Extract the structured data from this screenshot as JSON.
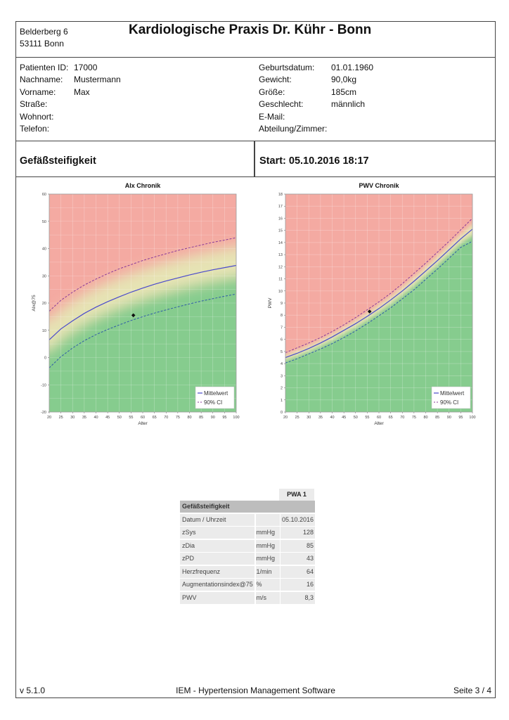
{
  "header": {
    "address_line1": "Belderberg 6",
    "address_line2": "53111 Bonn",
    "practice_name": "Kardiologische Praxis Dr. Kühr - Bonn"
  },
  "patient": {
    "left": [
      {
        "label": "Patienten ID:",
        "value": "17000"
      },
      {
        "label": "Nachname:",
        "value": "Mustermann"
      },
      {
        "label": "Vorname:",
        "value": "Max"
      },
      {
        "label": "Straße:",
        "value": ""
      },
      {
        "label": "Wohnort:",
        "value": ""
      },
      {
        "label": "Telefon:",
        "value": ""
      }
    ],
    "right": [
      {
        "label": "Geburtsdatum:",
        "value": "01.01.1960"
      },
      {
        "label": "Gewicht:",
        "value": "90,0kg"
      },
      {
        "label": "Größe:",
        "value": "185cm"
      },
      {
        "label": "Geschlecht:",
        "value": "männlich"
      },
      {
        "label": "E-Mail:",
        "value": ""
      },
      {
        "label": "Abteilung/Zimmer:",
        "value": ""
      }
    ]
  },
  "section": {
    "title": "Gefäßsteifigkeit",
    "start": "Start: 05.10.2016 18:17"
  },
  "colors": {
    "red_zone": "#f4aaa2",
    "yellow_zone": "#e6e3b4",
    "green_zone": "#86cc8e",
    "mean_line": "#4a4acc",
    "ci_upper": "#8a3a9a",
    "ci_lower": "#2f5aa8",
    "marker": "#111111"
  },
  "chart_data": [
    {
      "type": "line",
      "title": "AIx Chronik",
      "xlabel": "Alter",
      "ylabel": "AIx@75",
      "xlim": [
        20,
        100
      ],
      "ylim": [
        -20,
        60
      ],
      "xticks": [
        20,
        25,
        30,
        35,
        40,
        45,
        50,
        55,
        60,
        65,
        70,
        75,
        80,
        85,
        90,
        95,
        100
      ],
      "yticks": [
        -20,
        -10,
        0,
        10,
        20,
        30,
        40,
        50,
        60
      ],
      "grid": true,
      "legend": [
        "Mittelwert",
        "90% CI"
      ],
      "legend_position": "lower right",
      "x": [
        20,
        25,
        30,
        35,
        40,
        45,
        50,
        55,
        60,
        65,
        70,
        75,
        80,
        85,
        90,
        95,
        100
      ],
      "series": [
        {
          "name": "Mittelwert",
          "style": "solid",
          "values": [
            6.5,
            10.5,
            13.5,
            16.2,
            18.5,
            20.5,
            22.3,
            24,
            25.5,
            26.9,
            28.1,
            29.2,
            30.3,
            31.3,
            32.2,
            33,
            33.8
          ]
        },
        {
          "name": "90% CI upper",
          "style": "dashed",
          "values": [
            17,
            21,
            24,
            26.6,
            28.8,
            30.8,
            32.6,
            34.1,
            35.6,
            36.9,
            38.1,
            39.3,
            40.3,
            41.3,
            42.3,
            43.1,
            44
          ]
        },
        {
          "name": "90% CI lower",
          "style": "dashed",
          "values": [
            -3.8,
            0.3,
            3.5,
            6.2,
            8.4,
            10.3,
            12,
            13.6,
            15,
            16.3,
            17.5,
            18.6,
            19.7,
            20.7,
            21.6,
            22.5,
            23.3
          ]
        }
      ],
      "points": [
        {
          "x": 56,
          "y": 15.5
        }
      ]
    },
    {
      "type": "line",
      "title": "PWV Chronik",
      "xlabel": "Alter",
      "ylabel": "PWV",
      "xlim": [
        20,
        100
      ],
      "ylim": [
        0,
        18
      ],
      "xticks": [
        20,
        25,
        30,
        35,
        40,
        45,
        50,
        55,
        60,
        65,
        70,
        75,
        80,
        85,
        90,
        95,
        100
      ],
      "yticks": [
        0,
        1,
        2,
        3,
        4,
        5,
        6,
        7,
        8,
        9,
        10,
        11,
        12,
        13,
        14,
        15,
        16,
        17,
        18
      ],
      "grid": true,
      "legend": [
        "Mittelwert",
        "90% CI"
      ],
      "legend_position": "lower right",
      "x": [
        20,
        25,
        30,
        35,
        40,
        45,
        50,
        55,
        60,
        65,
        70,
        75,
        80,
        85,
        90,
        95,
        100
      ],
      "series": [
        {
          "name": "Mittelwert",
          "style": "solid",
          "values": [
            4.5,
            4.85,
            5.25,
            5.7,
            6.2,
            6.75,
            7.3,
            7.9,
            8.55,
            9.25,
            10,
            10.8,
            11.65,
            12.5,
            13.4,
            14.3,
            15.1
          ]
        },
        {
          "name": "90% CI upper",
          "style": "dashed",
          "values": [
            4.9,
            5.3,
            5.7,
            6.15,
            6.65,
            7.2,
            7.8,
            8.45,
            9.1,
            9.8,
            10.6,
            11.45,
            12.3,
            13.2,
            14.1,
            15.05,
            16
          ]
        },
        {
          "name": "90% CI lower",
          "style": "dashed",
          "values": [
            4.05,
            4.4,
            4.8,
            5.2,
            5.65,
            6.15,
            6.7,
            7.3,
            7.95,
            8.6,
            9.35,
            10.1,
            10.95,
            11.8,
            12.7,
            13.6,
            14.1
          ]
        }
      ],
      "points": [
        {
          "x": 56,
          "y": 8.3
        }
      ]
    }
  ],
  "results": {
    "column_header": "PWA 1",
    "group": "Gefäßsteifigkeit",
    "rows": [
      {
        "label": "Datum / Uhrzeit",
        "unit": "",
        "value": "05.10.2016"
      },
      {
        "label": "zSys",
        "unit": "mmHg",
        "value": "128"
      },
      {
        "label": "zDia",
        "unit": "mmHg",
        "value": "85"
      },
      {
        "label": "zPD",
        "unit": "mmHg",
        "value": "43"
      },
      {
        "label": "Herzfrequenz",
        "unit": "1/min",
        "value": "64"
      },
      {
        "label": "Augmentationsindex@75",
        "unit": "%",
        "value": "16"
      },
      {
        "label": "PWV",
        "unit": "m/s",
        "value": "8,3"
      }
    ]
  },
  "footer": {
    "version": "v 5.1.0",
    "software": "IEM - Hypertension Management Software",
    "page": "Seite 3 / 4"
  }
}
